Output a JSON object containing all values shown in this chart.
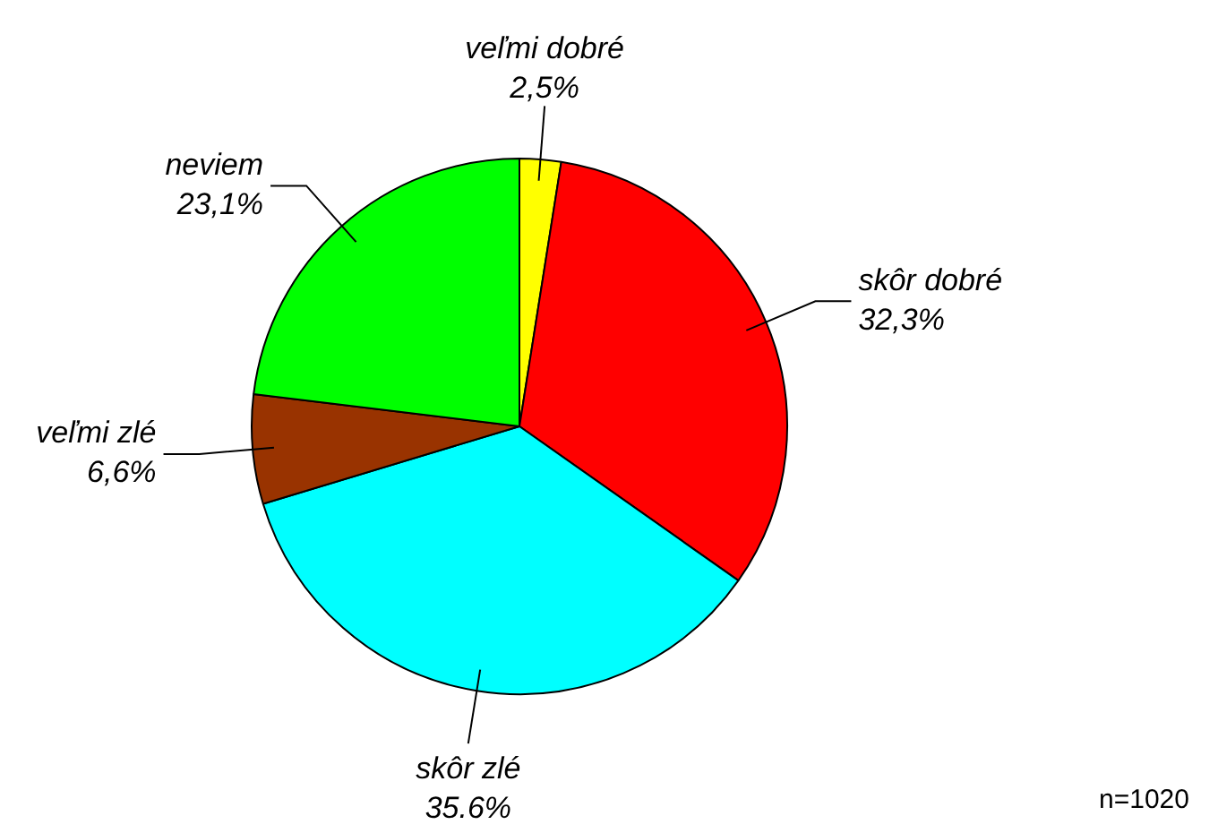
{
  "chart_data": {
    "type": "pie",
    "categories": [
      "veľmi dobré",
      "skôr dobré",
      "skôr zlé",
      "veľmi zlé",
      "neviem"
    ],
    "values": [
      2.5,
      32.3,
      35.6,
      6.6,
      23.1
    ],
    "colors": [
      "#ffff00",
      "#ff0000",
      "#00ffff",
      "#993300",
      "#00ff00"
    ],
    "value_labels": [
      "2,5%",
      "32,3%",
      "35.6%",
      "6,6%",
      "23,1%"
    ],
    "legend": false,
    "annotations": [
      "n=1020"
    ]
  }
}
